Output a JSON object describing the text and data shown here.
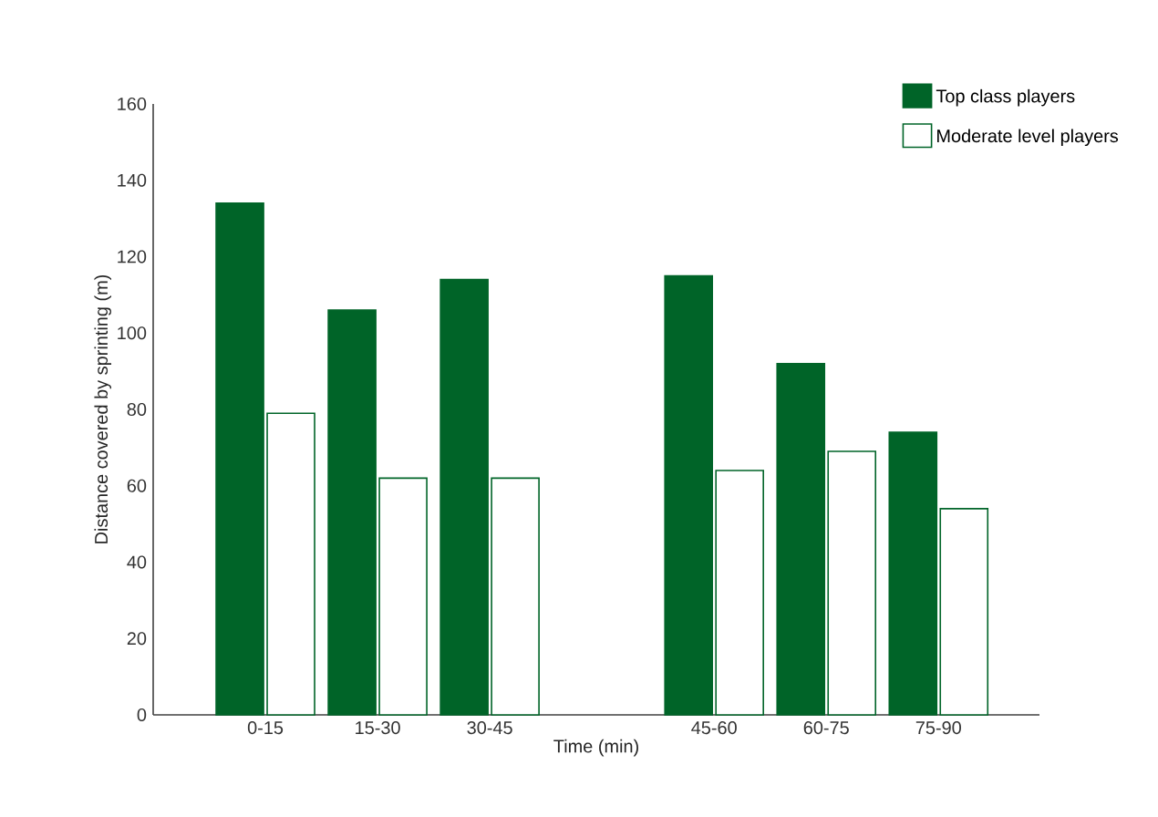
{
  "chart_data": {
    "type": "bar",
    "xlabel": "Time (min)",
    "ylabel": "Distance covered by sprinting (m)",
    "categories": [
      "0-15",
      "15-30",
      "30-45",
      null,
      "45-60",
      "60-75",
      "75-90"
    ],
    "series": [
      {
        "name": "Top class players",
        "color": "#006428",
        "values": [
          134,
          106,
          114,
          null,
          115,
          92,
          74
        ]
      },
      {
        "name": "Moderate level players",
        "color": "#ffffff",
        "values": [
          79,
          62,
          62,
          null,
          64,
          69,
          54
        ]
      }
    ],
    "ylim": [
      0,
      160
    ],
    "yticks": [
      0,
      20,
      40,
      60,
      80,
      100,
      120,
      140,
      160
    ],
    "grid": false,
    "legend": "top right"
  }
}
